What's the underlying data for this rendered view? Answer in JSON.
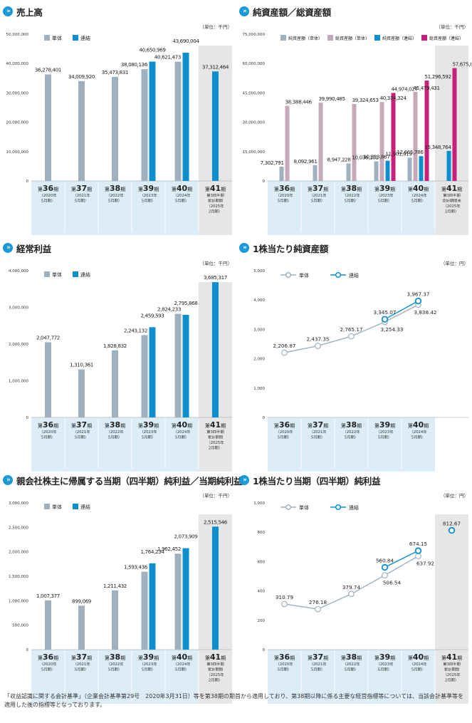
{
  "colors": {
    "single": "#9fb1bf",
    "consolidated": "#0d8fcf",
    "net_single": "#c6a9b9",
    "total_consolidated": "#c8207a",
    "axis_bg": "#dcedf8",
    "highlight_bg": "#e6e6e6",
    "icon": "#1a9ad6"
  },
  "footnote": "「収益認識に関する会計基準」（企業会計基準第29号　2020年3月31日）等を第38期の期首から適用しており、第38期以降に係る主要な経営指標等については、当該会計基準等を適用した後の指標等となっております。",
  "chart_data": [
    {
      "id": "sales",
      "type": "bar",
      "title": "売上高",
      "unit": "（単位：千円）",
      "ylim": [
        0,
        50000000
      ],
      "yticks": [
        0,
        10000000,
        20000000,
        30000000,
        40000000,
        50000000
      ],
      "ytick_labels": [
        "0",
        "10,000,000",
        "20,000,000",
        "30,000,000",
        "40,000,000",
        "50,000,000"
      ],
      "categories": [
        {
          "period": "第36期",
          "sub": [
            "（2020年",
            "5月期）"
          ]
        },
        {
          "period": "第37期",
          "sub": [
            "（2021年",
            "5月期）"
          ]
        },
        {
          "period": "第38期",
          "sub": [
            "（2022年",
            "5月期）"
          ]
        },
        {
          "period": "第39期",
          "sub": [
            "（2023年",
            "5月期）"
          ]
        },
        {
          "period": "第40期",
          "sub": [
            "（2024年",
            "5月期）"
          ]
        },
        {
          "period": "第41期",
          "sub": [
            "第3四半期",
            "累計期間",
            "（2025年",
            "2月期）"
          ]
        }
      ],
      "highlight_last": true,
      "series": [
        {
          "name": "単体",
          "color_key": "single",
          "values": [
            36278401,
            34009920,
            35473831,
            38080136,
            40621473,
            null
          ],
          "labels": [
            "36,278,401",
            "34,009,920",
            "35,473,831",
            "38,080,136",
            "40,621,473",
            ""
          ]
        },
        {
          "name": "連結",
          "color_key": "consolidated",
          "values": [
            null,
            null,
            null,
            40650969,
            43690004,
            37312464
          ],
          "labels": [
            "",
            "",
            "",
            "40,650,969",
            "43,690,004",
            "37,312,464"
          ]
        }
      ]
    },
    {
      "id": "assets",
      "type": "bar",
      "title": "純資産額／総資産額",
      "unit": "（単位：千円）",
      "ylim": [
        0,
        75000000
      ],
      "yticks": [
        0,
        15000000,
        30000000,
        45000000,
        60000000,
        75000000
      ],
      "ytick_labels": [
        "0",
        "15,000,000",
        "30,000,000",
        "45,000,000",
        "60,000,000",
        "75,000,000"
      ],
      "categories": [
        {
          "period": "第36期",
          "sub": [
            "（2020年",
            "5月期）"
          ]
        },
        {
          "period": "第37期",
          "sub": [
            "（2021年",
            "5月期）"
          ]
        },
        {
          "period": "第38期",
          "sub": [
            "（2022年",
            "5月期）"
          ]
        },
        {
          "period": "第39期",
          "sub": [
            "（2023年",
            "5月期）"
          ]
        },
        {
          "period": "第40期",
          "sub": [
            "（2024年",
            "5月期）"
          ]
        },
        {
          "period": "第41期",
          "sub": [
            "第3四半期",
            "会計期間末",
            "（2025年",
            "2月期）"
          ]
        }
      ],
      "highlight_last": true,
      "series": [
        {
          "name": "純資産額（単体）",
          "color_key": "single",
          "values": [
            7302791,
            8092961,
            8947228,
            10036101,
            11901919,
            null
          ],
          "labels": [
            "7,302,791",
            "8,092,961",
            "8,947,228",
            "10,036,101",
            "11,901,919",
            ""
          ]
        },
        {
          "name": "総資産額（単体）",
          "color_key": "net_single",
          "values": [
            38388446,
            39990485,
            39324653,
            40334324,
            45479431,
            null
          ],
          "labels": [
            "38,388,446",
            "39,990,485",
            "39,324,653",
            "40,334,324",
            "45,479,431",
            ""
          ]
        },
        {
          "name": "純資産額（連結）",
          "color_key": "consolidated",
          "values": [
            null,
            null,
            null,
            10313867,
            12665786,
            15348764
          ],
          "labels": [
            "",
            "",
            "",
            "10,313,867",
            "12,665,786",
            "15,348,764"
          ]
        },
        {
          "name": "総資産額（連結）",
          "color_key": "total_consolidated",
          "values": [
            null,
            null,
            null,
            44974027,
            51296592,
            57675880
          ],
          "labels": [
            "",
            "",
            "",
            "44,974,027",
            "51,296,592",
            "57,675,880"
          ]
        }
      ]
    },
    {
      "id": "ordinary",
      "type": "bar",
      "title": "経常利益",
      "unit": "（単位：千円）",
      "ylim": [
        0,
        4000000
      ],
      "yticks": [
        0,
        1000000,
        2000000,
        3000000,
        4000000
      ],
      "ytick_labels": [
        "0",
        "1,000,000",
        "2,000,000",
        "3,000,000",
        "4,000,000"
      ],
      "categories": [
        {
          "period": "第36期",
          "sub": [
            "（2020年",
            "5月期）"
          ]
        },
        {
          "period": "第37期",
          "sub": [
            "（2021年",
            "5月期）"
          ]
        },
        {
          "period": "第38期",
          "sub": [
            "（2022年",
            "5月期）"
          ]
        },
        {
          "period": "第39期",
          "sub": [
            "（2023年",
            "5月期）"
          ]
        },
        {
          "period": "第40期",
          "sub": [
            "（2024年",
            "5月期）"
          ]
        },
        {
          "period": "第41期",
          "sub": [
            "第3四半期",
            "累計期間",
            "（2025年",
            "2月期）"
          ]
        }
      ],
      "highlight_last": true,
      "series": [
        {
          "name": "単体",
          "color_key": "single",
          "values": [
            2047772,
            1310361,
            1828832,
            2243132,
            2824233,
            null
          ],
          "labels": [
            "2,047,772",
            "1,310,361",
            "1,828,832",
            "2,243,132",
            "2,824,233",
            ""
          ]
        },
        {
          "name": "連結",
          "color_key": "consolidated",
          "values": [
            null,
            null,
            null,
            2459593,
            2795868,
            3685317
          ],
          "labels": [
            "",
            "",
            "",
            "2,459,593",
            "2,795,868",
            "3,685,317"
          ]
        }
      ]
    },
    {
      "id": "bps",
      "type": "line",
      "title": "1株当たり純資産額",
      "unit": "（単位：円）",
      "ylim": [
        0,
        5000
      ],
      "yticks": [
        0,
        1000,
        2000,
        3000,
        4000,
        5000
      ],
      "ytick_labels": [
        "0",
        "1,000",
        "2,000",
        "3,000",
        "4,000",
        "5,000"
      ],
      "categories": [
        {
          "period": "第36期",
          "sub": [
            "（2020年",
            "5月期）"
          ]
        },
        {
          "period": "第37期",
          "sub": [
            "（2021年",
            "5月期）"
          ]
        },
        {
          "period": "第38期",
          "sub": [
            "（2022年",
            "5月期）"
          ]
        },
        {
          "period": "第39期",
          "sub": [
            "（2023年",
            "5月期）"
          ]
        },
        {
          "period": "第40期",
          "sub": [
            "（2024年",
            "5月期）"
          ]
        }
      ],
      "highlight_last": false,
      "series": [
        {
          "name": "単体",
          "color_key": "single",
          "values": [
            2206.87,
            2437.35,
            2765.17,
            3254.33,
            3838.42
          ],
          "labels": [
            "2,206.87",
            "2,437.35",
            "2,765.17",
            "3,254.33",
            "3,838.42"
          ]
        },
        {
          "name": "連結",
          "color_key": "consolidated",
          "values": [
            null,
            null,
            null,
            3345.07,
            3967.37
          ],
          "labels": [
            "",
            "",
            "",
            "3,345.07",
            "3,967.37"
          ]
        }
      ]
    },
    {
      "id": "net_income",
      "type": "bar",
      "title": "親会社株主に帰属する当期（四半期）純利益／当期純利益",
      "unit": "（単位：千円）",
      "ylim": [
        0,
        3000000
      ],
      "yticks": [
        0,
        500000,
        1000000,
        1500000,
        2000000,
        2500000,
        3000000
      ],
      "ytick_labels": [
        "0",
        "500,000",
        "1,000,000",
        "1,500,000",
        "2,000,000",
        "2,500,000",
        "3,000,000"
      ],
      "categories": [
        {
          "period": "第36期",
          "sub": [
            "（2020年",
            "5月期）"
          ]
        },
        {
          "period": "第37期",
          "sub": [
            "（2021年",
            "5月期）"
          ]
        },
        {
          "period": "第38期",
          "sub": [
            "（2022年",
            "5月期）"
          ]
        },
        {
          "period": "第39期",
          "sub": [
            "（2023年",
            "5月期）"
          ]
        },
        {
          "period": "第40期",
          "sub": [
            "（2024年",
            "5月期）"
          ]
        },
        {
          "period": "第41期",
          "sub": [
            "第3四半期",
            "累計期間",
            "（2025年",
            "2月期）"
          ]
        }
      ],
      "highlight_last": true,
      "series": [
        {
          "name": "単体",
          "color_key": "single",
          "values": [
            1007377,
            899069,
            1211432,
            1593436,
            1962452,
            null
          ],
          "labels": [
            "1,007,377",
            "899,069",
            "1,211,432",
            "1,593,436",
            "1,962,452",
            ""
          ]
        },
        {
          "name": "連結",
          "color_key": "consolidated",
          "values": [
            null,
            null,
            null,
            1764234,
            2073909,
            2515546
          ],
          "labels": [
            "",
            "",
            "",
            "1,764,234",
            "2,073,909",
            "2,515,546"
          ]
        }
      ]
    },
    {
      "id": "eps",
      "type": "line",
      "title": "1株当たり当期（四半期）純利益",
      "unit": "（単位：円）",
      "ylim": [
        0,
        1000
      ],
      "yticks": [
        0,
        200,
        400,
        600,
        800,
        1000
      ],
      "ytick_labels": [
        "0",
        "200",
        "400",
        "600",
        "800",
        "1,000"
      ],
      "categories": [
        {
          "period": "第36期",
          "sub": [
            "（2020年",
            "5月期）"
          ]
        },
        {
          "period": "第37期",
          "sub": [
            "（2021年",
            "5月期）"
          ]
        },
        {
          "period": "第38期",
          "sub": [
            "（2022年",
            "5月期）"
          ]
        },
        {
          "period": "第39期",
          "sub": [
            "（2023年",
            "5月期）"
          ]
        },
        {
          "period": "第40期",
          "sub": [
            "（2024年",
            "5月期）"
          ]
        },
        {
          "period": "第41期",
          "sub": [
            "第3四半期",
            "累計期間",
            "（2025年",
            "2月期）"
          ]
        }
      ],
      "highlight_last": true,
      "series": [
        {
          "name": "単体",
          "color_key": "single",
          "values": [
            310.79,
            276.18,
            379.74,
            506.54,
            637.92,
            null
          ],
          "labels": [
            "310.79",
            "276.18",
            "379.74",
            "506.54",
            "637.92",
            ""
          ]
        },
        {
          "name": "連結",
          "color_key": "consolidated",
          "values": [
            null,
            null,
            null,
            560.84,
            674.15,
            812.67
          ],
          "labels": [
            "",
            "",
            "",
            "560.84",
            "674.15",
            "812.67"
          ]
        }
      ]
    }
  ]
}
